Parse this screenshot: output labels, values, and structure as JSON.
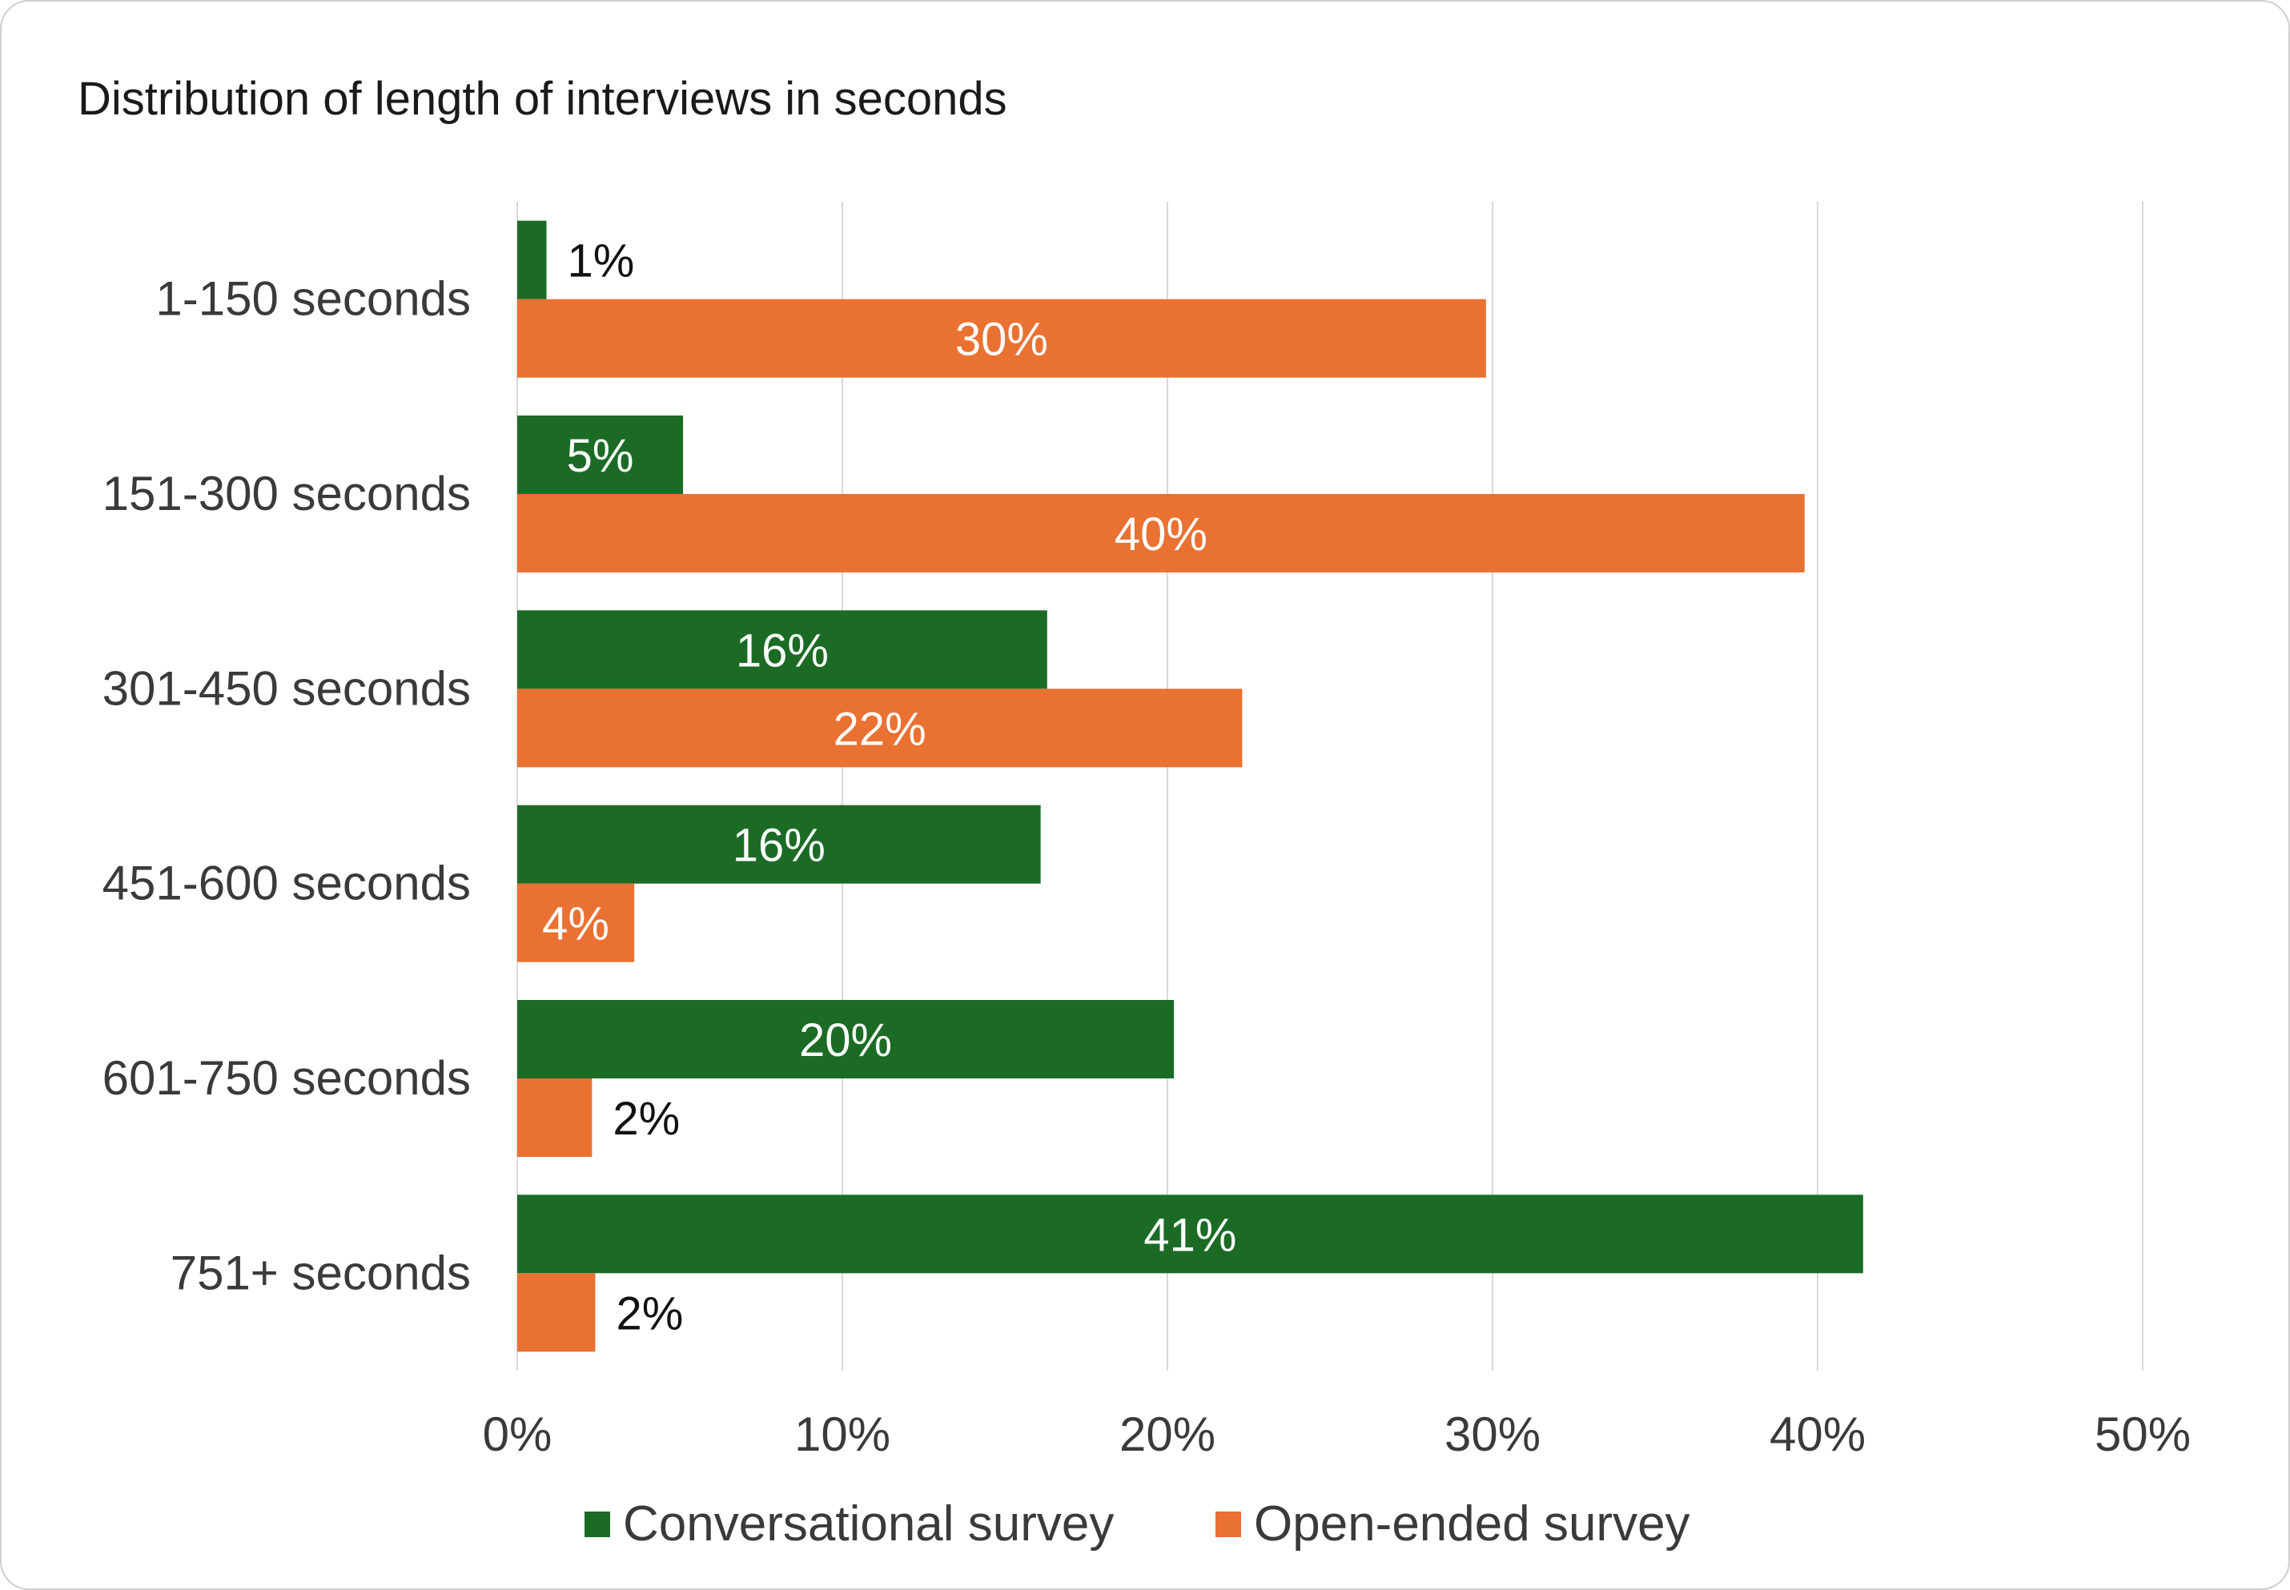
{
  "chart_data": {
    "type": "bar",
    "orientation": "horizontal",
    "title": "Distribution of length of interviews in seconds",
    "categories": [
      "1-150 seconds",
      "151-300 seconds",
      "301-450 seconds",
      "451-600 seconds",
      "601-750 seconds",
      "751+ seconds"
    ],
    "series": [
      {
        "name": "Conversational survey",
        "color": "#1b6b25",
        "values": [
          0.9,
          5.1,
          16.3,
          16.1,
          20.2,
          41.4
        ],
        "labels": [
          "1%",
          "5%",
          "16%",
          "16%",
          "20%",
          "41%"
        ]
      },
      {
        "name": "Open-ended survey",
        "color": "#e97132",
        "values": [
          29.8,
          39.6,
          22.3,
          3.6,
          2.3,
          2.4
        ],
        "labels": [
          "30%",
          "40%",
          "22%",
          "4%",
          "2%",
          "2%"
        ]
      }
    ],
    "xlim": [
      0,
      50
    ],
    "xticks": [
      0,
      10,
      20,
      30,
      40,
      50
    ],
    "xtick_labels": [
      "0%",
      "10%",
      "20%",
      "30%",
      "40%",
      "50%"
    ],
    "grid": true,
    "legend": "bottom"
  }
}
